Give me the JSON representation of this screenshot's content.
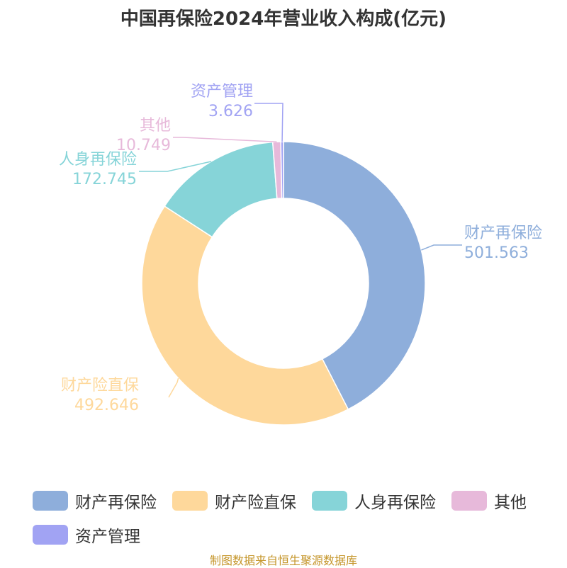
{
  "chart_data": {
    "type": "pie",
    "title": "中国再保险2024年营业收入构成(亿元)",
    "categories": [
      "财产再保险",
      "财产险直保",
      "人身再保险",
      "其他",
      "资产管理"
    ],
    "values": [
      501.563,
      492.646,
      172.745,
      10.749,
      3.626
    ],
    "value_labels": [
      "501.563",
      "492.646",
      "172.745",
      "10.749",
      "3.626"
    ],
    "colors": [
      "#8eaedb",
      "#fed89b",
      "#86d4d8",
      "#e7b9da",
      "#a1a3f3"
    ],
    "donut": true,
    "legend_position": "bottom"
  },
  "source_note": "制图数据来自恒生聚源数据库"
}
